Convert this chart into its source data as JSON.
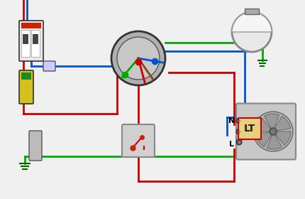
{
  "bg_color": "#f0f0f0",
  "title": "",
  "wire_red": "#cc0000",
  "wire_blue": "#0055cc",
  "wire_green": "#00aa00",
  "wire_brown": "#8B4513",
  "junction_color": "#00aa00",
  "junction_color2": "#0055cc",
  "junction_color3": "#cc0000",
  "lt_bg": "#e8d080",
  "lt_border": "#cc0000",
  "lt_text": "LT",
  "N_label": "N",
  "L_label": "L",
  "figsize": [
    4.3,
    2.8
  ],
  "dpi": 100
}
